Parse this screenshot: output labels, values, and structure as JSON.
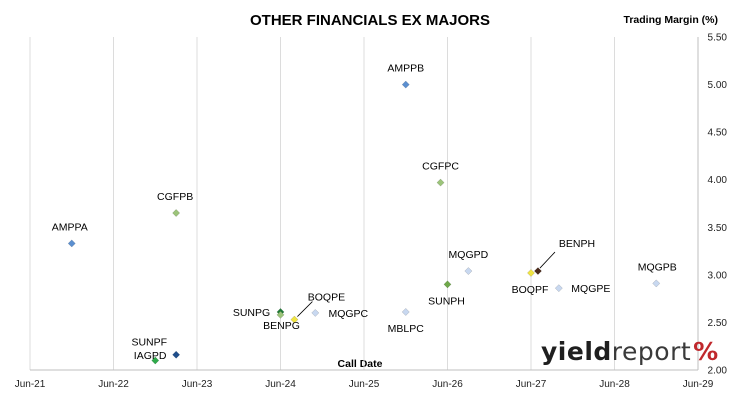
{
  "chart_data": {
    "type": "scatter",
    "title": "OTHER FINANCIALS EX MAJORS",
    "ylabel": "Trading Margin (%)",
    "xlabel": "Call Date",
    "x_ticks": [
      "Jun-21",
      "Jun-22",
      "Jun-23",
      "Jun-24",
      "Jun-25",
      "Jun-26",
      "Jun-27",
      "Jun-28",
      "Jun-29"
    ],
    "xlim": [
      "Jun-21",
      "Jun-29"
    ],
    "y_ticks": [
      "2.00",
      "2.50",
      "3.00",
      "3.50",
      "4.00",
      "4.50",
      "5.00",
      "5.50"
    ],
    "ylim": [
      2.0,
      5.5
    ],
    "y_axis_side": "right",
    "grid": {
      "vertical": true,
      "horizontal": false
    },
    "points": [
      {
        "label": "AMPPA",
        "x": "Dec-21",
        "y": 3.33,
        "color": "#5b8fd0"
      },
      {
        "label": "SUNPF",
        "x": "Dec-22",
        "y": 2.1,
        "color": "#2eaa4a"
      },
      {
        "label": "CGFPB",
        "x": "Mar-23",
        "y": 3.65,
        "color": "#9cc47a"
      },
      {
        "label": "IAGPD",
        "x": "Mar-23",
        "y": 2.16,
        "color": "#1f4e8c"
      },
      {
        "label": "SUNPG",
        "x": "Jun-24",
        "y": 2.61,
        "color": "#1e7a35"
      },
      {
        "label": "BENPG",
        "x": "Jun-24",
        "y": 2.58,
        "color": "#9cc47a"
      },
      {
        "label": "BOQPE",
        "x": "Aug-24",
        "y": 2.53,
        "color": "#f0e442"
      },
      {
        "label": "MQGPC",
        "x": "Nov-24",
        "y": 2.6,
        "color": "#c8d8f0"
      },
      {
        "label": "AMPPB",
        "x": "Dec-25",
        "y": 5.0,
        "color": "#5b8fd0"
      },
      {
        "label": "MBLPC",
        "x": "Dec-25",
        "y": 2.61,
        "color": "#c8d8f0"
      },
      {
        "label": "CGFPC",
        "x": "May-26",
        "y": 3.97,
        "color": "#9cc47a"
      },
      {
        "label": "SUNPH",
        "x": "Jun-26",
        "y": 2.9,
        "color": "#6fa84a"
      },
      {
        "label": "MQGPD",
        "x": "Sep-26",
        "y": 3.04,
        "color": "#c8d8f0"
      },
      {
        "label": "BOQPF",
        "x": "Jun-27",
        "y": 3.02,
        "color": "#f0e442"
      },
      {
        "label": "BENPH",
        "x": "Jul-27",
        "y": 3.04,
        "color": "#4a2a1a"
      },
      {
        "label": "MQGPE",
        "x": "Oct-27",
        "y": 2.86,
        "color": "#c8d8f0"
      },
      {
        "label": "MQGPB",
        "x": "Dec-28",
        "y": 2.91,
        "color": "#c8d8f0"
      }
    ]
  },
  "brand": {
    "part1": "yield",
    "part2": "report",
    "part3": "%"
  }
}
